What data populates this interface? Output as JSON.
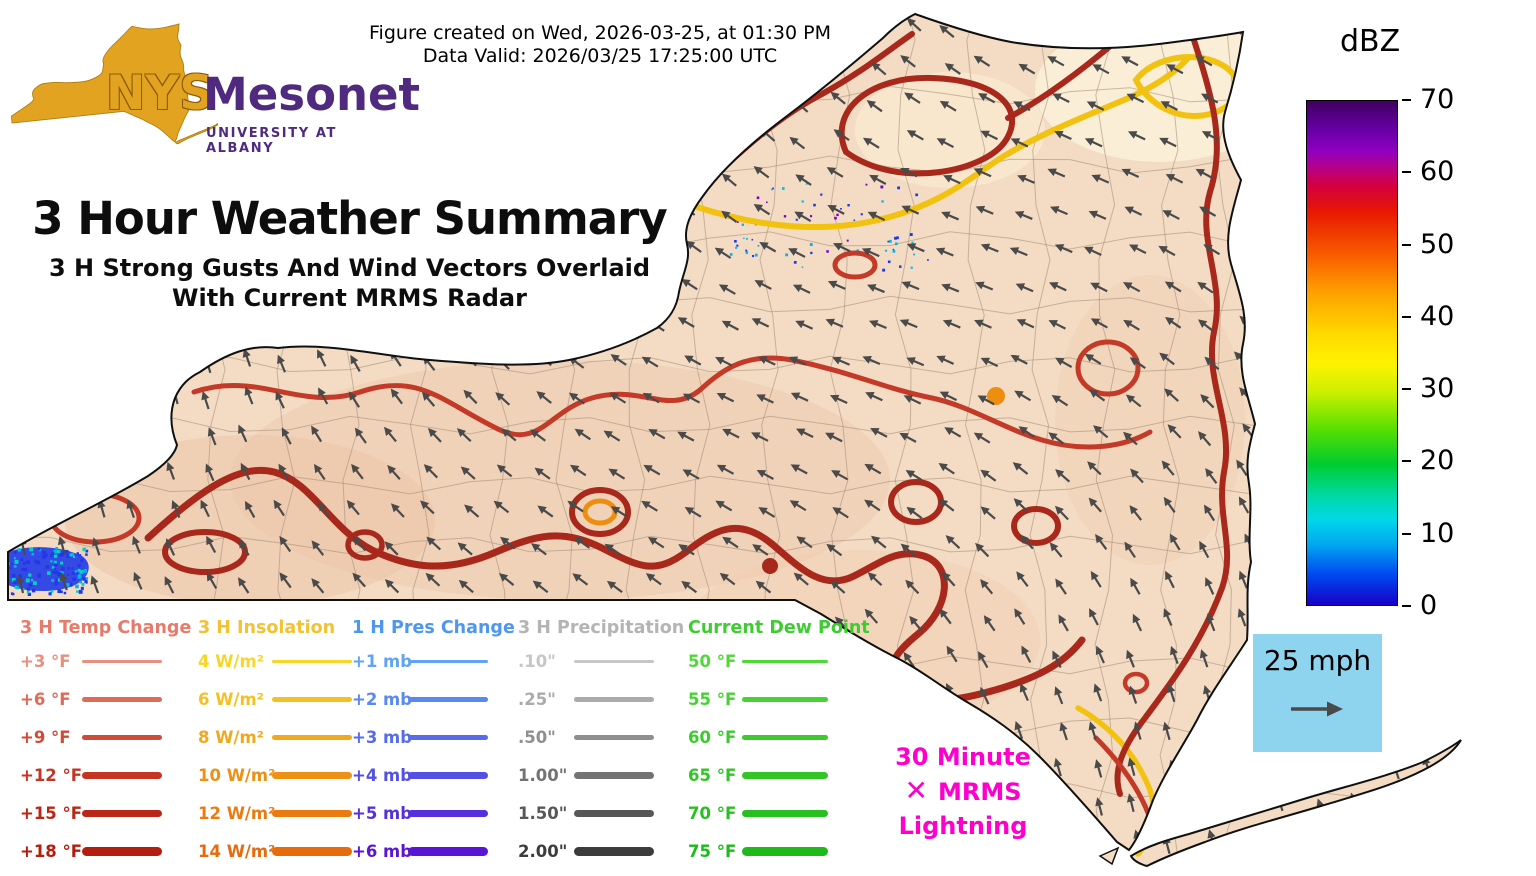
{
  "header": {
    "created": "Figure created on Wed, 2026-03-25, at 01:30 PM",
    "valid": "Data Valid: 2026/03/25 17:25:00 UTC"
  },
  "logo": {
    "nys": "NYS",
    "mesonet": "Mesonet",
    "university": "UNIVERSITY AT ALBANY",
    "gold": "#e2a321",
    "purple": "#4f2a7f"
  },
  "title": {
    "main": "3 Hour Weather Summary",
    "sub1": "3 H Strong Gusts And Wind Vectors Overlaid",
    "sub2": "With Current MRMS Radar"
  },
  "colorbar": {
    "title": "dBZ",
    "ticks": [
      "70",
      "60",
      "50",
      "40",
      "30",
      "20",
      "10",
      "0"
    ],
    "gradient_top_to_bottom": [
      "#3f0060 0%",
      "#6a00a8 6%",
      "#9000c0 10%",
      "#b4008c 13%",
      "#d4003c 17%",
      "#e81800 22%",
      "#f85800 30%",
      "#ffa000 38%",
      "#ffd800 46%",
      "#fff200 52%",
      "#c8f000 58%",
      "#58e000 65%",
      "#00cc30 72%",
      "#00d8a0 78%",
      "#00d8e8 83%",
      "#00a8f0 88%",
      "#0048f0 94%",
      "#1800c8 100%"
    ]
  },
  "wind_reference": {
    "label": "25 mph",
    "box_color": "#8fd4ef",
    "arrow_color": "#4a4a4a"
  },
  "lightning_note": {
    "line1": "30 Minute",
    "marker": "✕",
    "line2": "MRMS",
    "line3": "Lightning",
    "color": "#ff00cc"
  },
  "legend": {
    "columns": [
      {
        "header": "3 H Temp Change",
        "header_color": "#e87a6a",
        "items": [
          {
            "label": "+3 °F",
            "color": "#e89080"
          },
          {
            "label": "+6 °F",
            "color": "#de6a58"
          },
          {
            "label": "+9 °F",
            "color": "#d04a38"
          },
          {
            "label": "+12 °F",
            "color": "#c43524"
          },
          {
            "label": "+15 °F",
            "color": "#bb2716"
          },
          {
            "label": "+18 °F",
            "color": "#b51d0e"
          }
        ]
      },
      {
        "header": "3 H Insolation",
        "header_color": "#f1c232",
        "items": [
          {
            "label": "4 W/m²",
            "color": "#f6d629"
          },
          {
            "label": "6 W/m²",
            "color": "#f3c122"
          },
          {
            "label": "8 W/m²",
            "color": "#f0a91c"
          },
          {
            "label": "10 W/m²",
            "color": "#ed9116"
          },
          {
            "label": "12 W/m²",
            "color": "#ea7b10"
          },
          {
            "label": "14 W/m²",
            "color": "#e76a0b"
          }
        ]
      },
      {
        "header": "1 H Pres Change",
        "header_color": "#4e97ee",
        "items": [
          {
            "label": "+1 mb",
            "color": "#62a4f4"
          },
          {
            "label": "+2 mb",
            "color": "#5a88f0"
          },
          {
            "label": "+3 mb",
            "color": "#566cec"
          },
          {
            "label": "+4 mb",
            "color": "#5450e6"
          },
          {
            "label": "+5 mb",
            "color": "#5531de"
          },
          {
            "label": "+6 mb",
            "color": "#5a14d6"
          }
        ]
      },
      {
        "header": "3 H Precipitation",
        "header_color": "#b4b4b4",
        "items": [
          {
            "label": ".10\"",
            "color": "#c6c6c6"
          },
          {
            "label": ".25\"",
            "color": "#ababab"
          },
          {
            "label": ".50\"",
            "color": "#8f8f8f"
          },
          {
            "label": "1.00\"",
            "color": "#737373"
          },
          {
            "label": "1.50\"",
            "color": "#575757"
          },
          {
            "label": "2.00\"",
            "color": "#3c3c3c"
          }
        ]
      },
      {
        "header": "Current Dew Point",
        "header_color": "#3ecc30",
        "items": [
          {
            "label": "50 °F",
            "color": "#4fd838"
          },
          {
            "label": "55 °F",
            "color": "#45d232"
          },
          {
            "label": "60 °F",
            "color": "#3bcc2c"
          },
          {
            "label": "65 °F",
            "color": "#31c626"
          },
          {
            "label": "70 °F",
            "color": "#27c020"
          },
          {
            "label": "75 °F",
            "color": "#1dba1a"
          }
        ]
      }
    ]
  },
  "map": {
    "region": "New York State",
    "fill": "#f4dcc4",
    "outline": "#101010",
    "county_line_color": "#a08a74",
    "wind_vector_color": "#4a4a4a",
    "contour_colors": {
      "temp_medium": "#c33a28",
      "temp_dark": "#a8281c",
      "insolation_yellow": "#f2c211",
      "insolation_orange": "#ee8e0e"
    },
    "radar_colors": [
      "#2038e8",
      "#00b8e8",
      "#00d4c0",
      "#7a00c8"
    ]
  }
}
